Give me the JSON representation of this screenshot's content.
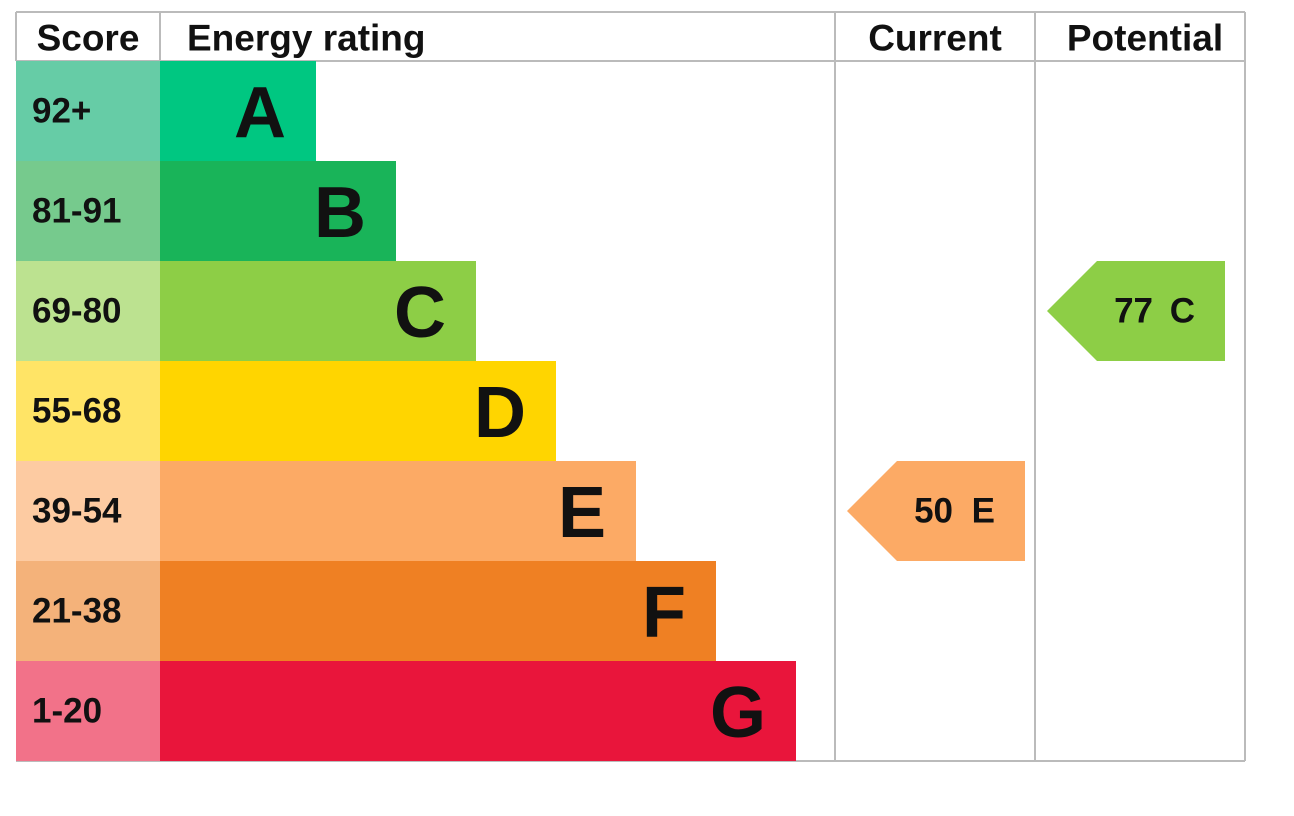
{
  "header": {
    "score": "Score",
    "rating": "Energy rating",
    "current": "Current",
    "potential": "Potential"
  },
  "bands": [
    {
      "score": "92+",
      "letter": "A",
      "color": "#00c781",
      "light": "#66cca6"
    },
    {
      "score": "81-91",
      "letter": "B",
      "color": "#19b459",
      "light": "#76ca8d"
    },
    {
      "score": "69-80",
      "letter": "C",
      "color": "#8dce46",
      "light": "#bce290"
    },
    {
      "score": "55-68",
      "letter": "D",
      "color": "#ffd500",
      "light": "#ffe466"
    },
    {
      "score": "39-54",
      "letter": "E",
      "color": "#fcaa65",
      "light": "#fdcba2"
    },
    {
      "score": "21-38",
      "letter": "F",
      "color": "#ef8023",
      "light": "#f4b27a"
    },
    {
      "score": "1-20",
      "letter": "G",
      "color": "#e9153b",
      "light": "#f27289"
    }
  ],
  "current": {
    "score": "50",
    "rating": "E"
  },
  "potential": {
    "score": "77",
    "rating": "C"
  }
}
